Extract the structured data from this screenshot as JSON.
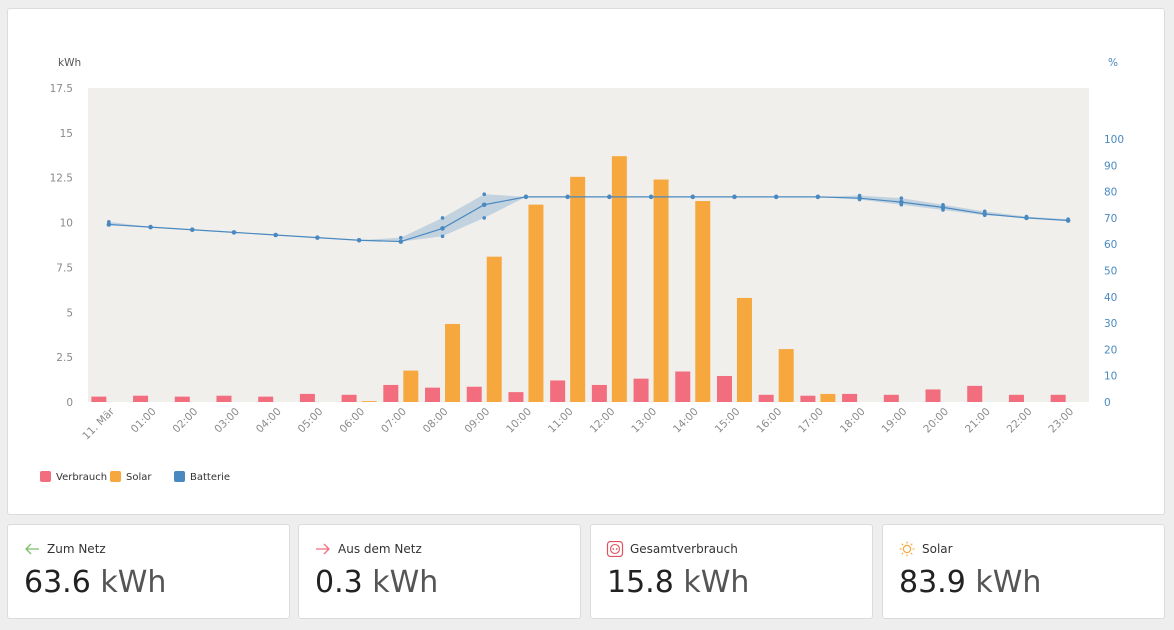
{
  "chart_data": {
    "type": "bar",
    "categories": [
      "11. Mär",
      "01:00",
      "02:00",
      "03:00",
      "04:00",
      "05:00",
      "06:00",
      "07:00",
      "08:00",
      "09:00",
      "10:00",
      "11:00",
      "12:00",
      "13:00",
      "14:00",
      "15:00",
      "16:00",
      "17:00",
      "18:00",
      "19:00",
      "20:00",
      "21:00",
      "22:00",
      "23:00"
    ],
    "series": [
      {
        "name": "Verbrauch",
        "type": "bar",
        "axis": "left",
        "color": "#f26d7d",
        "values": [
          0.3,
          0.35,
          0.3,
          0.35,
          0.3,
          0.45,
          0.4,
          0.95,
          0.8,
          0.85,
          0.55,
          1.2,
          0.95,
          1.3,
          1.7,
          1.45,
          0.4,
          0.35,
          0.45,
          0.4,
          0.7,
          0.9,
          0.4,
          0.4
        ]
      },
      {
        "name": "Solar",
        "type": "bar",
        "axis": "left",
        "color": "#f6a83e",
        "values": [
          0,
          0,
          0,
          0,
          0,
          0,
          0.05,
          1.75,
          4.35,
          8.1,
          11.0,
          12.55,
          13.7,
          12.4,
          11.2,
          5.8,
          2.95,
          0.45,
          0,
          0,
          0,
          0,
          0,
          0
        ]
      },
      {
        "name": "Batterie",
        "type": "line",
        "axis": "right",
        "color": "#4a89c0",
        "values": [
          67.5,
          66.5,
          65.5,
          64.5,
          63.5,
          62.5,
          61.5,
          61.0,
          66.0,
          75.0,
          78.0,
          78.0,
          78.0,
          78.0,
          78.0,
          78.0,
          78.0,
          78.0,
          77.5,
          76.0,
          74.0,
          71.5,
          70.0,
          69.0
        ],
        "min": [
          67.5,
          66.5,
          65.5,
          64.5,
          63.5,
          62.5,
          61.5,
          61.0,
          63.0,
          70.0,
          78.0,
          78.0,
          78.0,
          78.0,
          78.0,
          78.0,
          78.0,
          78.0,
          77.0,
          75.0,
          73.0,
          71.0,
          70.0,
          69.0
        ],
        "max": [
          68.5,
          66.5,
          65.5,
          64.5,
          63.5,
          62.5,
          61.5,
          62.5,
          70.0,
          79.0,
          78.0,
          78.0,
          78.0,
          78.0,
          78.0,
          78.0,
          78.0,
          78.0,
          78.5,
          77.5,
          75.0,
          72.5,
          70.5,
          69.5
        ]
      }
    ],
    "yleft": {
      "label": "kWh",
      "ticks": [
        "0",
        "2.5",
        "5",
        "7.5",
        "10",
        "12.5",
        "15",
        "17.5"
      ],
      "lim": [
        0,
        17.5
      ]
    },
    "yright": {
      "label": "%",
      "ticks": [
        "0",
        "10",
        "20",
        "30",
        "40",
        "50",
        "60",
        "70",
        "80",
        "90",
        "100"
      ],
      "lim": [
        0,
        100
      ]
    },
    "legend": {
      "position": "bottom-left",
      "items": [
        {
          "name": "Verbrauch",
          "color": "#f26d7d"
        },
        {
          "name": "Solar",
          "color": "#f6a83e"
        },
        {
          "name": "Batterie",
          "color": "#4a89c0"
        }
      ]
    },
    "grid": false
  },
  "stats": [
    {
      "label": "Zum Netz",
      "value": "63.6",
      "unit": "kWh",
      "icon": "arrow-left-icon",
      "icon_color": "#7cbf6a"
    },
    {
      "label": "Aus dem Netz",
      "value": "0.3",
      "unit": "kWh",
      "icon": "arrow-right-icon",
      "icon_color": "#f26d7d"
    },
    {
      "label": "Gesamtverbrauch",
      "value": "15.8",
      "unit": "kWh",
      "icon": "socket-icon",
      "icon_color": "#e0505f"
    },
    {
      "label": "Solar",
      "value": "83.9",
      "unit": "kWh",
      "icon": "sun-icon",
      "icon_color": "#f6a83e"
    }
  ]
}
